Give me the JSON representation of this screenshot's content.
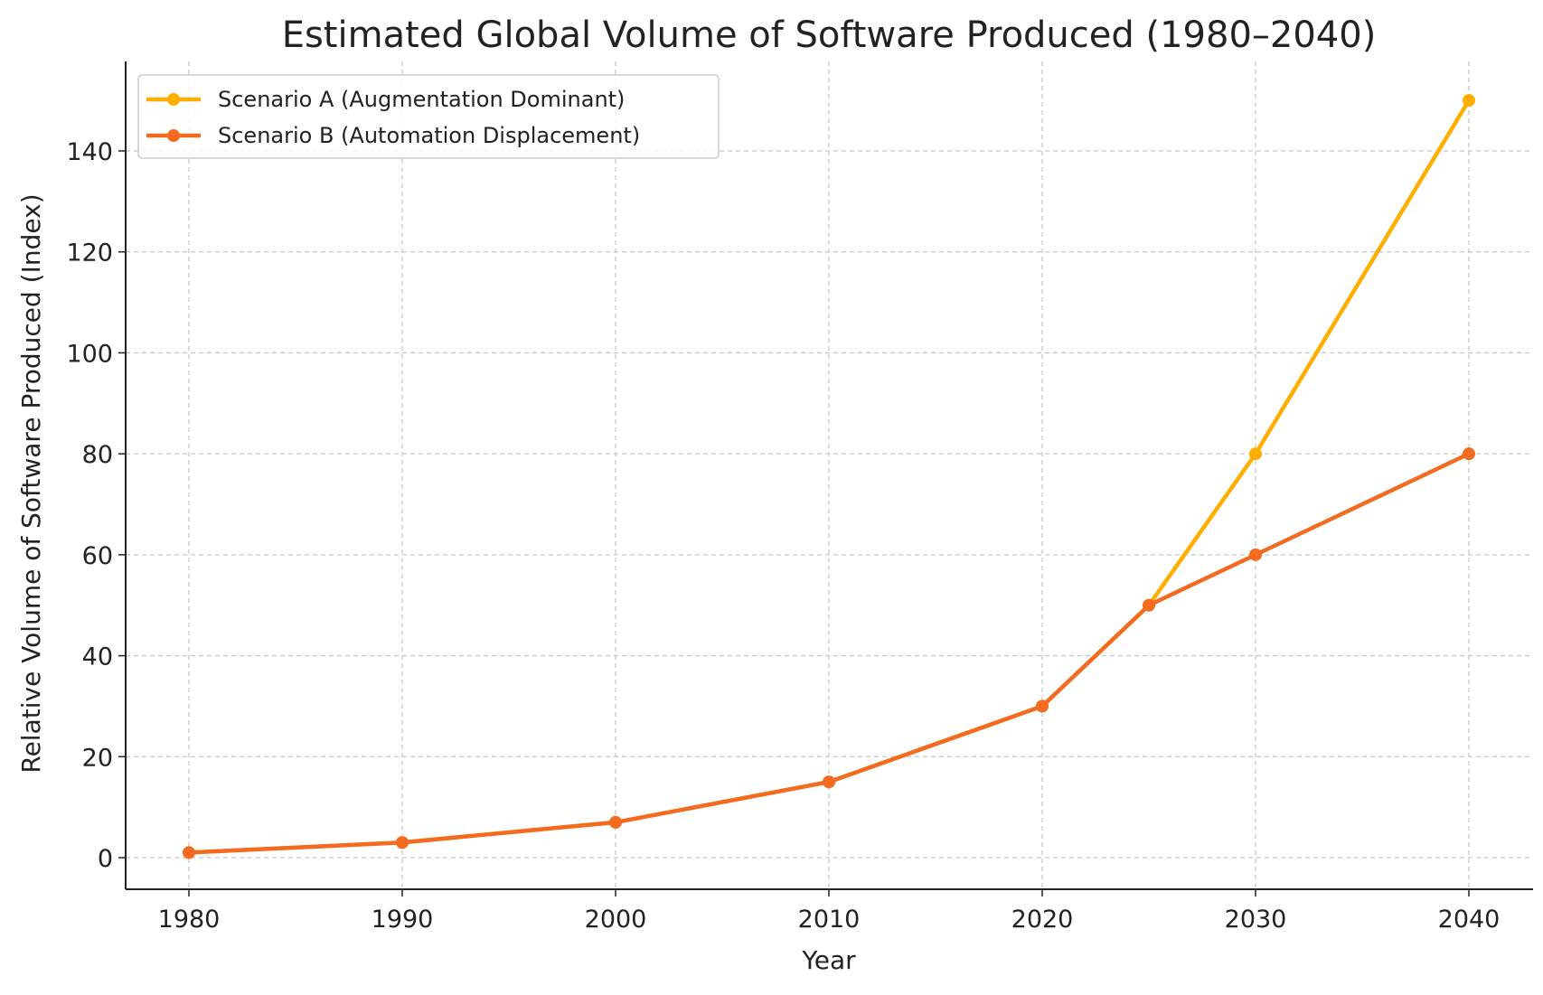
{
  "chart_data": {
    "type": "line",
    "title": "Estimated Global Volume of Software Produced (1980–2040)",
    "xlabel": "Year",
    "ylabel": "Relative Volume of Software Produced (Index)",
    "x": [
      1980,
      1990,
      2000,
      2010,
      2020,
      2025,
      2030,
      2040
    ],
    "x_ticks": [
      "1980",
      "1990",
      "2000",
      "2010",
      "2020",
      "2030",
      "2040"
    ],
    "y_ticks": [
      "0",
      "20",
      "40",
      "60",
      "80",
      "100",
      "120",
      "140"
    ],
    "xlim": [
      1977,
      2043
    ],
    "ylim": [
      -6.5,
      157.5
    ],
    "grid": true,
    "legend_position": "top-left",
    "series": [
      {
        "name": "Scenario A (Augmentation Dominant)",
        "color": "#FFAE00",
        "values": [
          1,
          3,
          7,
          15,
          30,
          50,
          80,
          150
        ]
      },
      {
        "name": "Scenario B (Automation Displacement)",
        "color": "#F26B21",
        "values": [
          1,
          3,
          7,
          15,
          30,
          50,
          60,
          80
        ]
      }
    ]
  }
}
